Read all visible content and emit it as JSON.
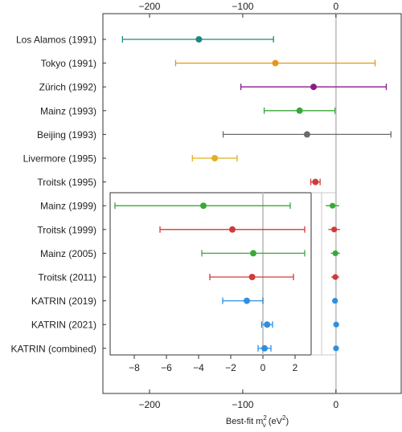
{
  "chart_data": {
    "type": "scatter",
    "xlabel": {
      "base": "Best-fit m",
      "sup": "2",
      "sub": "ν",
      "unit": " (eV",
      "unit_sup": "2",
      "close": ")"
    },
    "main_axis": {
      "xlim": [
        -250,
        70
      ],
      "ticks": [
        -200,
        -100,
        0
      ],
      "tick_labels": [
        "−200",
        "−100",
        "0"
      ],
      "grid": false,
      "reference_line_x": 0
    },
    "inset_axis": {
      "xlim": [
        -9.5,
        3
      ],
      "ticks": [
        -8,
        -6,
        -4,
        -2,
        0,
        2
      ],
      "tick_labels": [
        "−8",
        "−6",
        "−4",
        "−2",
        "0",
        "2"
      ],
      "reference_line_x": 0
    },
    "experiments": [
      {
        "name": "Los Alamos (1991)",
        "value": -147,
        "lo": -229,
        "hi": -67,
        "color": "#1a8a7e",
        "inset": false
      },
      {
        "name": "Tokyo (1991)",
        "value": -65,
        "lo": -172,
        "hi": 42,
        "color": "#e8941a",
        "inset": false
      },
      {
        "name": "Zürich (1992)",
        "value": -24,
        "lo": -102,
        "hi": 54,
        "color": "#8a1a8a",
        "inset": false
      },
      {
        "name": "Mainz (1993)",
        "value": -39,
        "lo": -77,
        "hi": -1,
        "color": "#3aa83a",
        "inset": false
      },
      {
        "name": "Beijing (1993)",
        "value": -31,
        "lo": -121,
        "hi": 59,
        "color": "#6b6b6b",
        "inset": false
      },
      {
        "name": "Livermore (1995)",
        "value": -130,
        "lo": -154,
        "hi": -106,
        "color": "#e0b022",
        "inset": false
      },
      {
        "name": "Troitsk (1995)",
        "value": -22,
        "lo": -27,
        "hi": -17,
        "color": "#d23a3a",
        "inset": false
      },
      {
        "name": "Mainz (1999)",
        "value": -3.7,
        "lo": -9.2,
        "hi": 1.7,
        "color": "#3aa83a",
        "inset": true
      },
      {
        "name": "Troitsk (1999)",
        "value": -1.9,
        "lo": -6.4,
        "hi": 2.6,
        "color": "#d23a3a",
        "inset": true
      },
      {
        "name": "Mainz (2005)",
        "value": -0.6,
        "lo": -3.8,
        "hi": 2.6,
        "color": "#3aa83a",
        "inset": true
      },
      {
        "name": "Troitsk (2011)",
        "value": -0.67,
        "lo": -3.3,
        "hi": 1.9,
        "color": "#d23a3a",
        "inset": true
      },
      {
        "name": "KATRIN (2019)",
        "value": -1.0,
        "lo": -2.5,
        "hi": 0.0,
        "color": "#2e8fe0",
        "inset": true
      },
      {
        "name": "KATRIN (2021)",
        "value": 0.26,
        "lo": -0.08,
        "hi": 0.6,
        "color": "#2e8fe0",
        "inset": true
      },
      {
        "name": "KATRIN (combined)",
        "value": 0.1,
        "lo": -0.3,
        "hi": 0.5,
        "color": "#2e8fe0",
        "inset": true
      }
    ]
  }
}
